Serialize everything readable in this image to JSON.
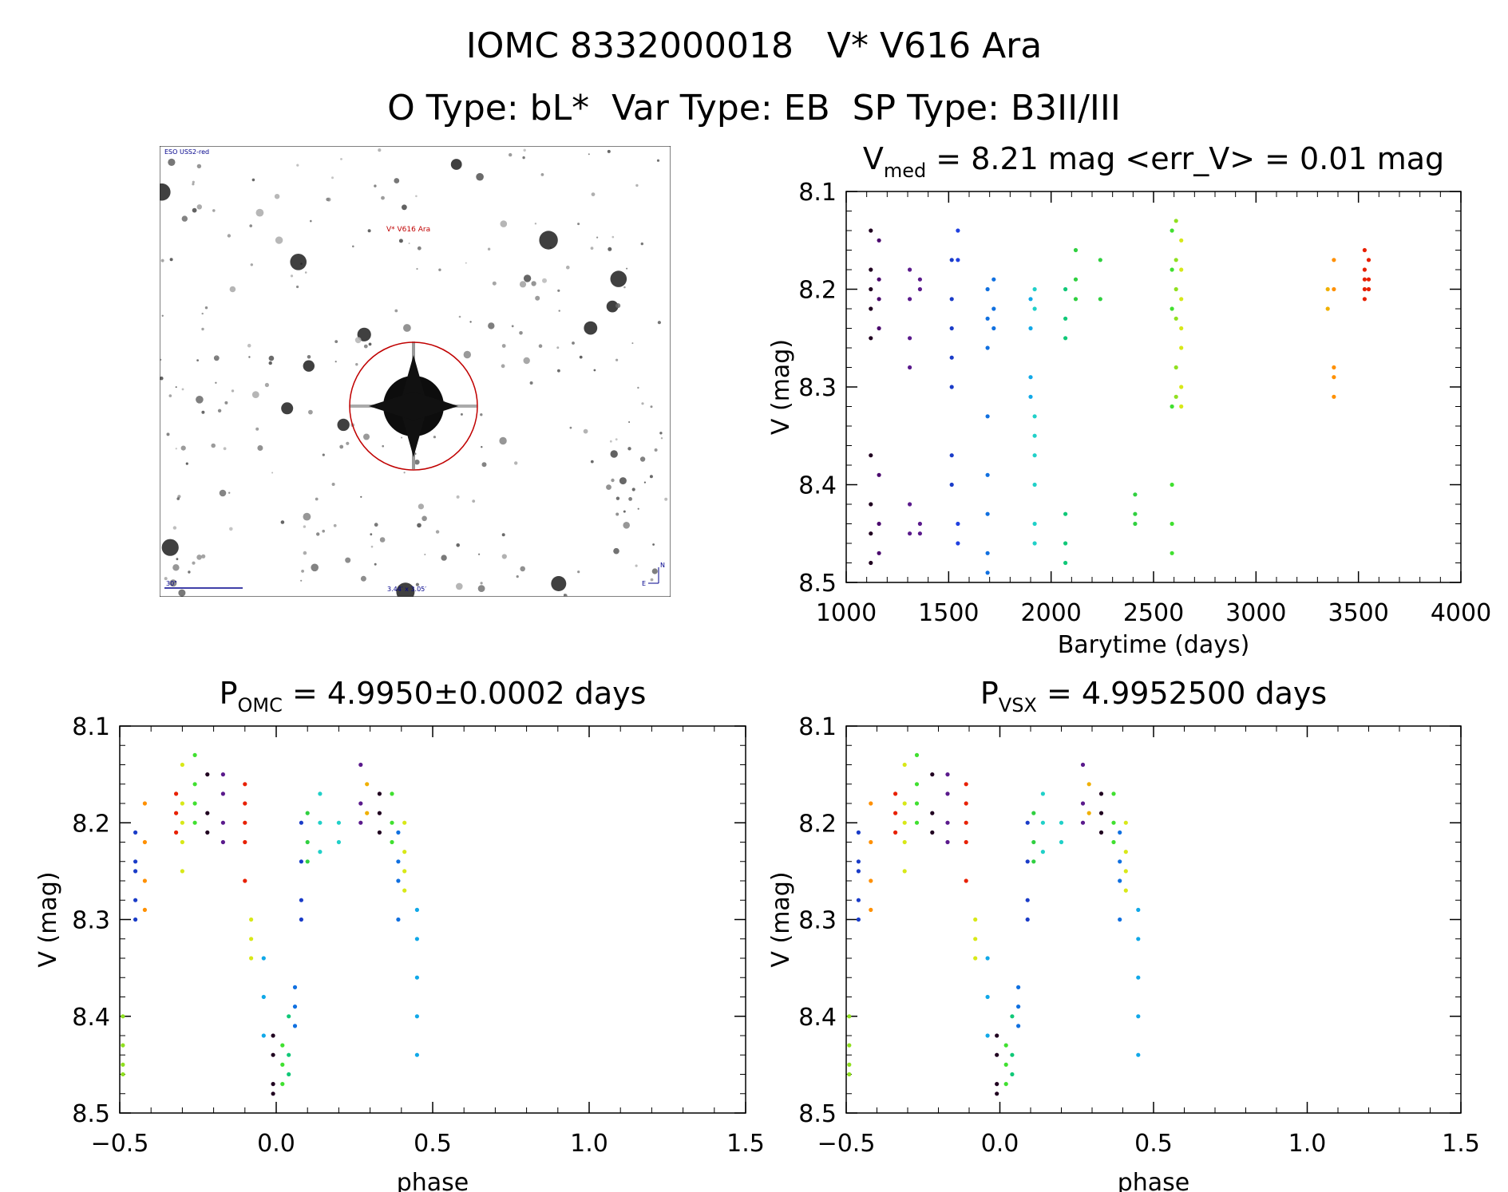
{
  "header": {
    "line1": "IOMC 8332000018   V* V616 Ara",
    "line2": "O Type: bL*  Var Type: EB  SP Type: B3II/III"
  },
  "sky_image": {
    "survey_label": "ESO USS2-red",
    "target_label": "V* V616 Ara",
    "scale_label": "30\"",
    "size_label": "3.44′ x 3.05′",
    "north_label": "N",
    "east_label": "E"
  },
  "chart_data": [
    {
      "id": "lightcurve",
      "type": "scatter",
      "title_main": "V",
      "title_sub": "med",
      "title_rest": " = 8.21 mag <err_V> = 0.01 mag",
      "xlabel": "Barytime (days)",
      "ylabel": "V (mag)",
      "xlim": [
        1000,
        4000
      ],
      "ylim": [
        8.5,
        8.1
      ],
      "xticks": [
        "1000",
        "1500",
        "2000",
        "2500",
        "3000",
        "3500",
        "4000"
      ],
      "yticks": [
        "8.1",
        "8.2",
        "8.3",
        "8.4",
        "8.5"
      ],
      "grid": false,
      "groups": [
        {
          "x": 1120,
          "y": [
            8.14,
            8.18,
            8.2,
            8.22,
            8.25,
            8.37,
            8.42,
            8.45,
            8.48
          ],
          "color": "#200020"
        },
        {
          "x": 1160,
          "y": [
            8.15,
            8.19,
            8.21,
            8.24,
            8.39,
            8.44,
            8.47
          ],
          "color": "#4b0a6e"
        },
        {
          "x": 1310,
          "y": [
            8.18,
            8.21,
            8.25,
            8.28,
            8.42,
            8.45
          ],
          "color": "#5a1a8c"
        },
        {
          "x": 1360,
          "y": [
            8.19,
            8.2,
            8.44,
            8.45
          ],
          "color": "#5a1a8c"
        },
        {
          "x": 1515,
          "y": [
            8.17,
            8.21,
            8.24,
            8.27,
            8.3,
            8.37,
            8.4
          ],
          "color": "#1a3cc8"
        },
        {
          "x": 1545,
          "y": [
            8.14,
            8.17,
            8.44,
            8.46
          ],
          "color": "#2040e0"
        },
        {
          "x": 1690,
          "y": [
            8.2,
            8.23,
            8.26,
            8.33,
            8.39,
            8.43,
            8.47,
            8.49
          ],
          "color": "#1070e0"
        },
        {
          "x": 1720,
          "y": [
            8.19,
            8.22,
            8.24
          ],
          "color": "#1070e0"
        },
        {
          "x": 1900,
          "y": [
            8.21,
            8.24,
            8.29,
            8.31
          ],
          "color": "#10a8e8"
        },
        {
          "x": 1920,
          "y": [
            8.2,
            8.22,
            8.33,
            8.35,
            8.37,
            8.4,
            8.44,
            8.46
          ],
          "color": "#20d0c8"
        },
        {
          "x": 2070,
          "y": [
            8.2,
            8.23,
            8.25,
            8.43,
            8.46,
            8.48
          ],
          "color": "#10c878"
        },
        {
          "x": 2120,
          "y": [
            8.16,
            8.19,
            8.21
          ],
          "color": "#30d040"
        },
        {
          "x": 2240,
          "y": [
            8.17,
            8.21
          ],
          "color": "#30d040"
        },
        {
          "x": 2410,
          "y": [
            8.41,
            8.43,
            8.44
          ],
          "color": "#30d040"
        },
        {
          "x": 2590,
          "y": [
            8.14,
            8.18,
            8.22,
            8.32,
            8.4,
            8.44,
            8.47
          ],
          "color": "#40e030"
        },
        {
          "x": 2610,
          "y": [
            8.13,
            8.17,
            8.2,
            8.23,
            8.28,
            8.31
          ],
          "color": "#90e020"
        },
        {
          "x": 2635,
          "y": [
            8.15,
            8.18,
            8.21,
            8.24,
            8.26,
            8.3,
            8.32
          ],
          "color": "#d8e818"
        },
        {
          "x": 3350,
          "y": [
            8.2,
            8.22
          ],
          "color": "#f0b000"
        },
        {
          "x": 3380,
          "y": [
            8.17,
            8.2,
            8.28,
            8.29,
            8.31
          ],
          "color": "#ff9000"
        },
        {
          "x": 3530,
          "y": [
            8.16,
            8.18,
            8.19,
            8.2,
            8.21
          ],
          "color": "#e82000"
        },
        {
          "x": 3550,
          "y": [
            8.17,
            8.19,
            8.2
          ],
          "color": "#e82000"
        }
      ]
    },
    {
      "id": "phase_omc",
      "type": "scatter",
      "title_main": "P",
      "title_sub": "OMC",
      "title_rest": " = 4.9950±0.0002 days",
      "xlabel": "phase",
      "ylabel": "V (mag)",
      "xlim": [
        -0.5,
        1.5
      ],
      "ylim": [
        8.5,
        8.1
      ],
      "xticks": [
        "−0.5",
        "0.0",
        "0.5",
        "1.0",
        "1.5"
      ],
      "yticks": [
        "8.1",
        "8.2",
        "8.3",
        "8.4",
        "8.5"
      ],
      "grid": false,
      "groups": [
        {
          "x": -0.49,
          "y": [
            8.4,
            8.43,
            8.45,
            8.46
          ],
          "color": "#90e020"
        },
        {
          "x": -0.45,
          "y": [
            8.21,
            8.24,
            8.25,
            8.28,
            8.3
          ],
          "color": "#1a3cc8"
        },
        {
          "x": -0.42,
          "y": [
            8.18,
            8.22,
            8.26,
            8.29
          ],
          "color": "#ff9000"
        },
        {
          "x": -0.32,
          "y": [
            8.17,
            8.19,
            8.21
          ],
          "color": "#e82000"
        },
        {
          "x": -0.3,
          "y": [
            8.14,
            8.18,
            8.2,
            8.22,
            8.25
          ],
          "color": "#d8e818"
        },
        {
          "x": -0.26,
          "y": [
            8.13,
            8.16,
            8.18,
            8.2
          ],
          "color": "#40e030"
        },
        {
          "x": -0.22,
          "y": [
            8.15,
            8.19,
            8.21
          ],
          "color": "#200020"
        },
        {
          "x": -0.17,
          "y": [
            8.15,
            8.17,
            8.2,
            8.22
          ],
          "color": "#5a1a8c"
        },
        {
          "x": -0.1,
          "y": [
            8.16,
            8.18,
            8.2,
            8.22,
            8.26
          ],
          "color": "#e82000"
        },
        {
          "x": -0.08,
          "y": [
            8.3,
            8.32,
            8.34
          ],
          "color": "#d8e818"
        },
        {
          "x": -0.04,
          "y": [
            8.34,
            8.38,
            8.42
          ],
          "color": "#10a8e8"
        },
        {
          "x": -0.01,
          "y": [
            8.42,
            8.44,
            8.47,
            8.48
          ],
          "color": "#200020"
        },
        {
          "x": 0.02,
          "y": [
            8.43,
            8.45,
            8.47
          ],
          "color": "#40e030"
        },
        {
          "x": 0.04,
          "y": [
            8.4,
            8.44,
            8.46
          ],
          "color": "#10c878"
        },
        {
          "x": 0.06,
          "y": [
            8.37,
            8.39,
            8.41
          ],
          "color": "#1070e0"
        },
        {
          "x": 0.08,
          "y": [
            8.2,
            8.24,
            8.28,
            8.3
          ],
          "color": "#1a3cc8"
        },
        {
          "x": 0.1,
          "y": [
            8.19,
            8.22,
            8.24
          ],
          "color": "#30d040"
        },
        {
          "x": 0.14,
          "y": [
            8.17,
            8.2,
            8.23
          ],
          "color": "#20d0c8"
        },
        {
          "x": 0.2,
          "y": [
            8.2,
            8.22
          ],
          "color": "#20d0c8"
        },
        {
          "x": 0.27,
          "y": [
            8.14,
            8.18,
            8.2
          ],
          "color": "#5a1a8c"
        },
        {
          "x": 0.29,
          "y": [
            8.16,
            8.19
          ],
          "color": "#f0b000"
        },
        {
          "x": 0.33,
          "y": [
            8.17,
            8.19,
            8.21
          ],
          "color": "#200020"
        },
        {
          "x": 0.37,
          "y": [
            8.17,
            8.2,
            8.22
          ],
          "color": "#40e030"
        },
        {
          "x": 0.39,
          "y": [
            8.21,
            8.24,
            8.26,
            8.3
          ],
          "color": "#1070e0"
        },
        {
          "x": 0.41,
          "y": [
            8.2,
            8.23,
            8.25,
            8.27
          ],
          "color": "#d8e818"
        },
        {
          "x": 0.45,
          "y": [
            8.29,
            8.32,
            8.36,
            8.4,
            8.44
          ],
          "color": "#10a8e8"
        }
      ]
    },
    {
      "id": "phase_vsx",
      "type": "scatter",
      "title_main": "P",
      "title_sub": "VSX",
      "title_rest": " = 4.9952500 days",
      "xlabel": "phase",
      "ylabel": "V (mag)",
      "xlim": [
        -0.5,
        1.5
      ],
      "ylim": [
        8.5,
        8.1
      ],
      "xticks": [
        "−0.5",
        "0.0",
        "0.5",
        "1.0",
        "1.5"
      ],
      "yticks": [
        "8.1",
        "8.2",
        "8.3",
        "8.4",
        "8.5"
      ],
      "grid": false,
      "groups": [
        {
          "x": -0.49,
          "y": [
            8.4,
            8.43,
            8.45,
            8.46
          ],
          "color": "#90e020"
        },
        {
          "x": -0.46,
          "y": [
            8.21,
            8.24,
            8.25,
            8.28,
            8.3
          ],
          "color": "#1a3cc8"
        },
        {
          "x": -0.42,
          "y": [
            8.18,
            8.22,
            8.26,
            8.29
          ],
          "color": "#ff9000"
        },
        {
          "x": -0.34,
          "y": [
            8.17,
            8.19,
            8.21
          ],
          "color": "#e82000"
        },
        {
          "x": -0.31,
          "y": [
            8.14,
            8.18,
            8.2,
            8.22,
            8.25
          ],
          "color": "#d8e818"
        },
        {
          "x": -0.27,
          "y": [
            8.13,
            8.16,
            8.18,
            8.2
          ],
          "color": "#40e030"
        },
        {
          "x": -0.22,
          "y": [
            8.15,
            8.19,
            8.21
          ],
          "color": "#200020"
        },
        {
          "x": -0.17,
          "y": [
            8.15,
            8.17,
            8.2,
            8.22
          ],
          "color": "#5a1a8c"
        },
        {
          "x": -0.11,
          "y": [
            8.16,
            8.18,
            8.2,
            8.22,
            8.26
          ],
          "color": "#e82000"
        },
        {
          "x": -0.08,
          "y": [
            8.3,
            8.32,
            8.34
          ],
          "color": "#d8e818"
        },
        {
          "x": -0.04,
          "y": [
            8.34,
            8.38,
            8.42
          ],
          "color": "#10a8e8"
        },
        {
          "x": -0.01,
          "y": [
            8.42,
            8.44,
            8.47,
            8.48
          ],
          "color": "#200020"
        },
        {
          "x": 0.02,
          "y": [
            8.43,
            8.45,
            8.47
          ],
          "color": "#40e030"
        },
        {
          "x": 0.04,
          "y": [
            8.4,
            8.44,
            8.46
          ],
          "color": "#10c878"
        },
        {
          "x": 0.06,
          "y": [
            8.37,
            8.39,
            8.41
          ],
          "color": "#1070e0"
        },
        {
          "x": 0.09,
          "y": [
            8.2,
            8.24,
            8.28,
            8.3
          ],
          "color": "#1a3cc8"
        },
        {
          "x": 0.11,
          "y": [
            8.19,
            8.22,
            8.24
          ],
          "color": "#30d040"
        },
        {
          "x": 0.14,
          "y": [
            8.17,
            8.2,
            8.23
          ],
          "color": "#20d0c8"
        },
        {
          "x": 0.2,
          "y": [
            8.2,
            8.22
          ],
          "color": "#20d0c8"
        },
        {
          "x": 0.27,
          "y": [
            8.14,
            8.18,
            8.2
          ],
          "color": "#5a1a8c"
        },
        {
          "x": 0.29,
          "y": [
            8.16,
            8.19
          ],
          "color": "#f0b000"
        },
        {
          "x": 0.33,
          "y": [
            8.17,
            8.19,
            8.21
          ],
          "color": "#200020"
        },
        {
          "x": 0.37,
          "y": [
            8.17,
            8.2,
            8.22
          ],
          "color": "#40e030"
        },
        {
          "x": 0.39,
          "y": [
            8.21,
            8.24,
            8.26,
            8.3
          ],
          "color": "#1070e0"
        },
        {
          "x": 0.41,
          "y": [
            8.2,
            8.23,
            8.25,
            8.27
          ],
          "color": "#d8e818"
        },
        {
          "x": 0.45,
          "y": [
            8.29,
            8.32,
            8.36,
            8.4,
            8.44
          ],
          "color": "#10a8e8"
        }
      ]
    }
  ]
}
